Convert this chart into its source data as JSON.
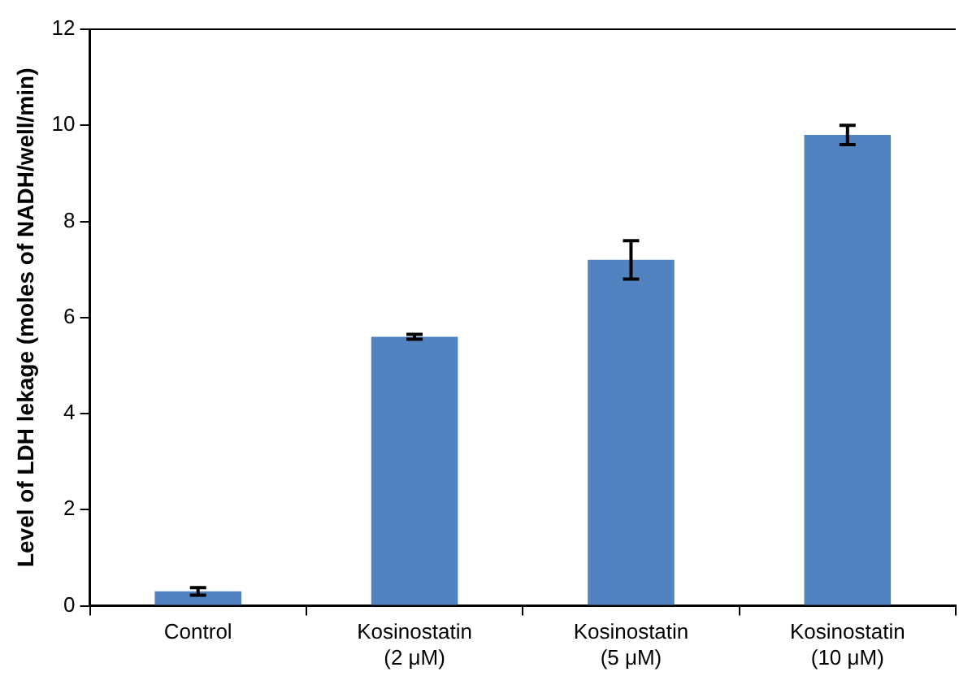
{
  "chart_data": {
    "type": "bar",
    "ylabel": "Level of LDH lekage (moles of NADH/well/min)",
    "categories": [
      "Control",
      "Kosinostatin\n(2 μM)",
      "Kosinostatin\n(5 μM)",
      "Kosinostatin\n(10 μM)"
    ],
    "values": [
      0.3,
      5.6,
      7.2,
      9.8
    ],
    "errors": [
      0.08,
      0.05,
      0.4,
      0.2
    ],
    "color": "#5183c1",
    "ylim": [
      0,
      12
    ],
    "yticks": [
      0,
      2,
      4,
      6,
      8,
      10,
      12
    ],
    "grid": false,
    "legend": false
  }
}
